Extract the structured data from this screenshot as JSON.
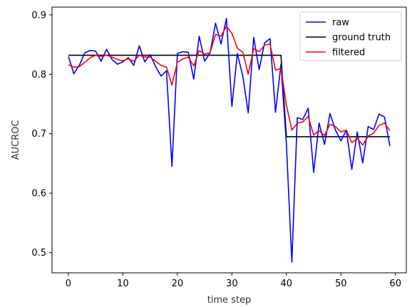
{
  "chart_data": {
    "type": "line",
    "xlabel": "time step",
    "ylabel": "AUCROC",
    "xlim": [
      -3,
      62
    ],
    "ylim": [
      0.466,
      0.913
    ],
    "xticks": [
      0,
      10,
      20,
      30,
      40,
      50,
      60
    ],
    "yticks": [
      0.5,
      0.6,
      0.7,
      0.8,
      0.9
    ],
    "legend_position": "top-right",
    "x": [
      0,
      1,
      2,
      3,
      4,
      5,
      6,
      7,
      8,
      9,
      10,
      11,
      12,
      13,
      14,
      15,
      16,
      17,
      18,
      19,
      20,
      21,
      22,
      23,
      24,
      25,
      26,
      27,
      28,
      29,
      30,
      31,
      32,
      33,
      34,
      35,
      36,
      37,
      38,
      39,
      40,
      41,
      42,
      43,
      44,
      45,
      46,
      47,
      48,
      49,
      50,
      51,
      52,
      53,
      54,
      55,
      56,
      57,
      58,
      59
    ],
    "series": [
      {
        "name": "raw",
        "color": "#0000ff",
        "values": [
          0.83,
          0.801,
          0.815,
          0.836,
          0.84,
          0.839,
          0.822,
          0.842,
          0.825,
          0.817,
          0.821,
          0.828,
          0.815,
          0.848,
          0.821,
          0.833,
          0.813,
          0.797,
          0.806,
          0.645,
          0.835,
          0.838,
          0.837,
          0.792,
          0.864,
          0.822,
          0.836,
          0.886,
          0.851,
          0.894,
          0.746,
          0.835,
          0.797,
          0.735,
          0.862,
          0.808,
          0.853,
          0.86,
          0.736,
          0.817,
          0.683,
          0.484,
          0.727,
          0.724,
          0.743,
          0.635,
          0.718,
          0.682,
          0.734,
          0.706,
          0.688,
          0.706,
          0.64,
          0.703,
          0.651,
          0.712,
          0.707,
          0.733,
          0.728,
          0.679
        ]
      },
      {
        "name": "ground truth",
        "color": "#000000",
        "values": [
          0.832,
          0.832,
          0.832,
          0.832,
          0.832,
          0.832,
          0.832,
          0.832,
          0.832,
          0.832,
          0.832,
          0.832,
          0.832,
          0.832,
          0.832,
          0.832,
          0.832,
          0.832,
          0.832,
          0.832,
          0.832,
          0.832,
          0.832,
          0.832,
          0.832,
          0.832,
          0.832,
          0.832,
          0.832,
          0.832,
          0.832,
          0.832,
          0.832,
          0.832,
          0.832,
          0.832,
          0.832,
          0.832,
          0.832,
          0.832,
          0.695,
          0.695,
          0.695,
          0.695,
          0.695,
          0.695,
          0.695,
          0.695,
          0.695,
          0.695,
          0.695,
          0.695,
          0.695,
          0.695,
          0.695,
          0.695,
          0.695,
          0.695,
          0.695,
          0.695
        ]
      },
      {
        "name": "filtered",
        "color": "#ff0000",
        "values": [
          0.816,
          0.812,
          0.813,
          0.82,
          0.828,
          0.832,
          0.83,
          0.832,
          0.829,
          0.825,
          0.823,
          0.826,
          0.822,
          0.832,
          0.829,
          0.829,
          0.822,
          0.815,
          0.812,
          0.782,
          0.82,
          0.826,
          0.829,
          0.814,
          0.84,
          0.834,
          0.836,
          0.867,
          0.864,
          0.881,
          0.869,
          0.844,
          0.837,
          0.8,
          0.843,
          0.838,
          0.849,
          0.851,
          0.807,
          0.81,
          0.748,
          0.706,
          0.718,
          0.72,
          0.729,
          0.698,
          0.705,
          0.697,
          0.716,
          0.712,
          0.703,
          0.706,
          0.685,
          0.692,
          0.681,
          0.696,
          0.701,
          0.714,
          0.718,
          0.705
        ]
      }
    ]
  }
}
